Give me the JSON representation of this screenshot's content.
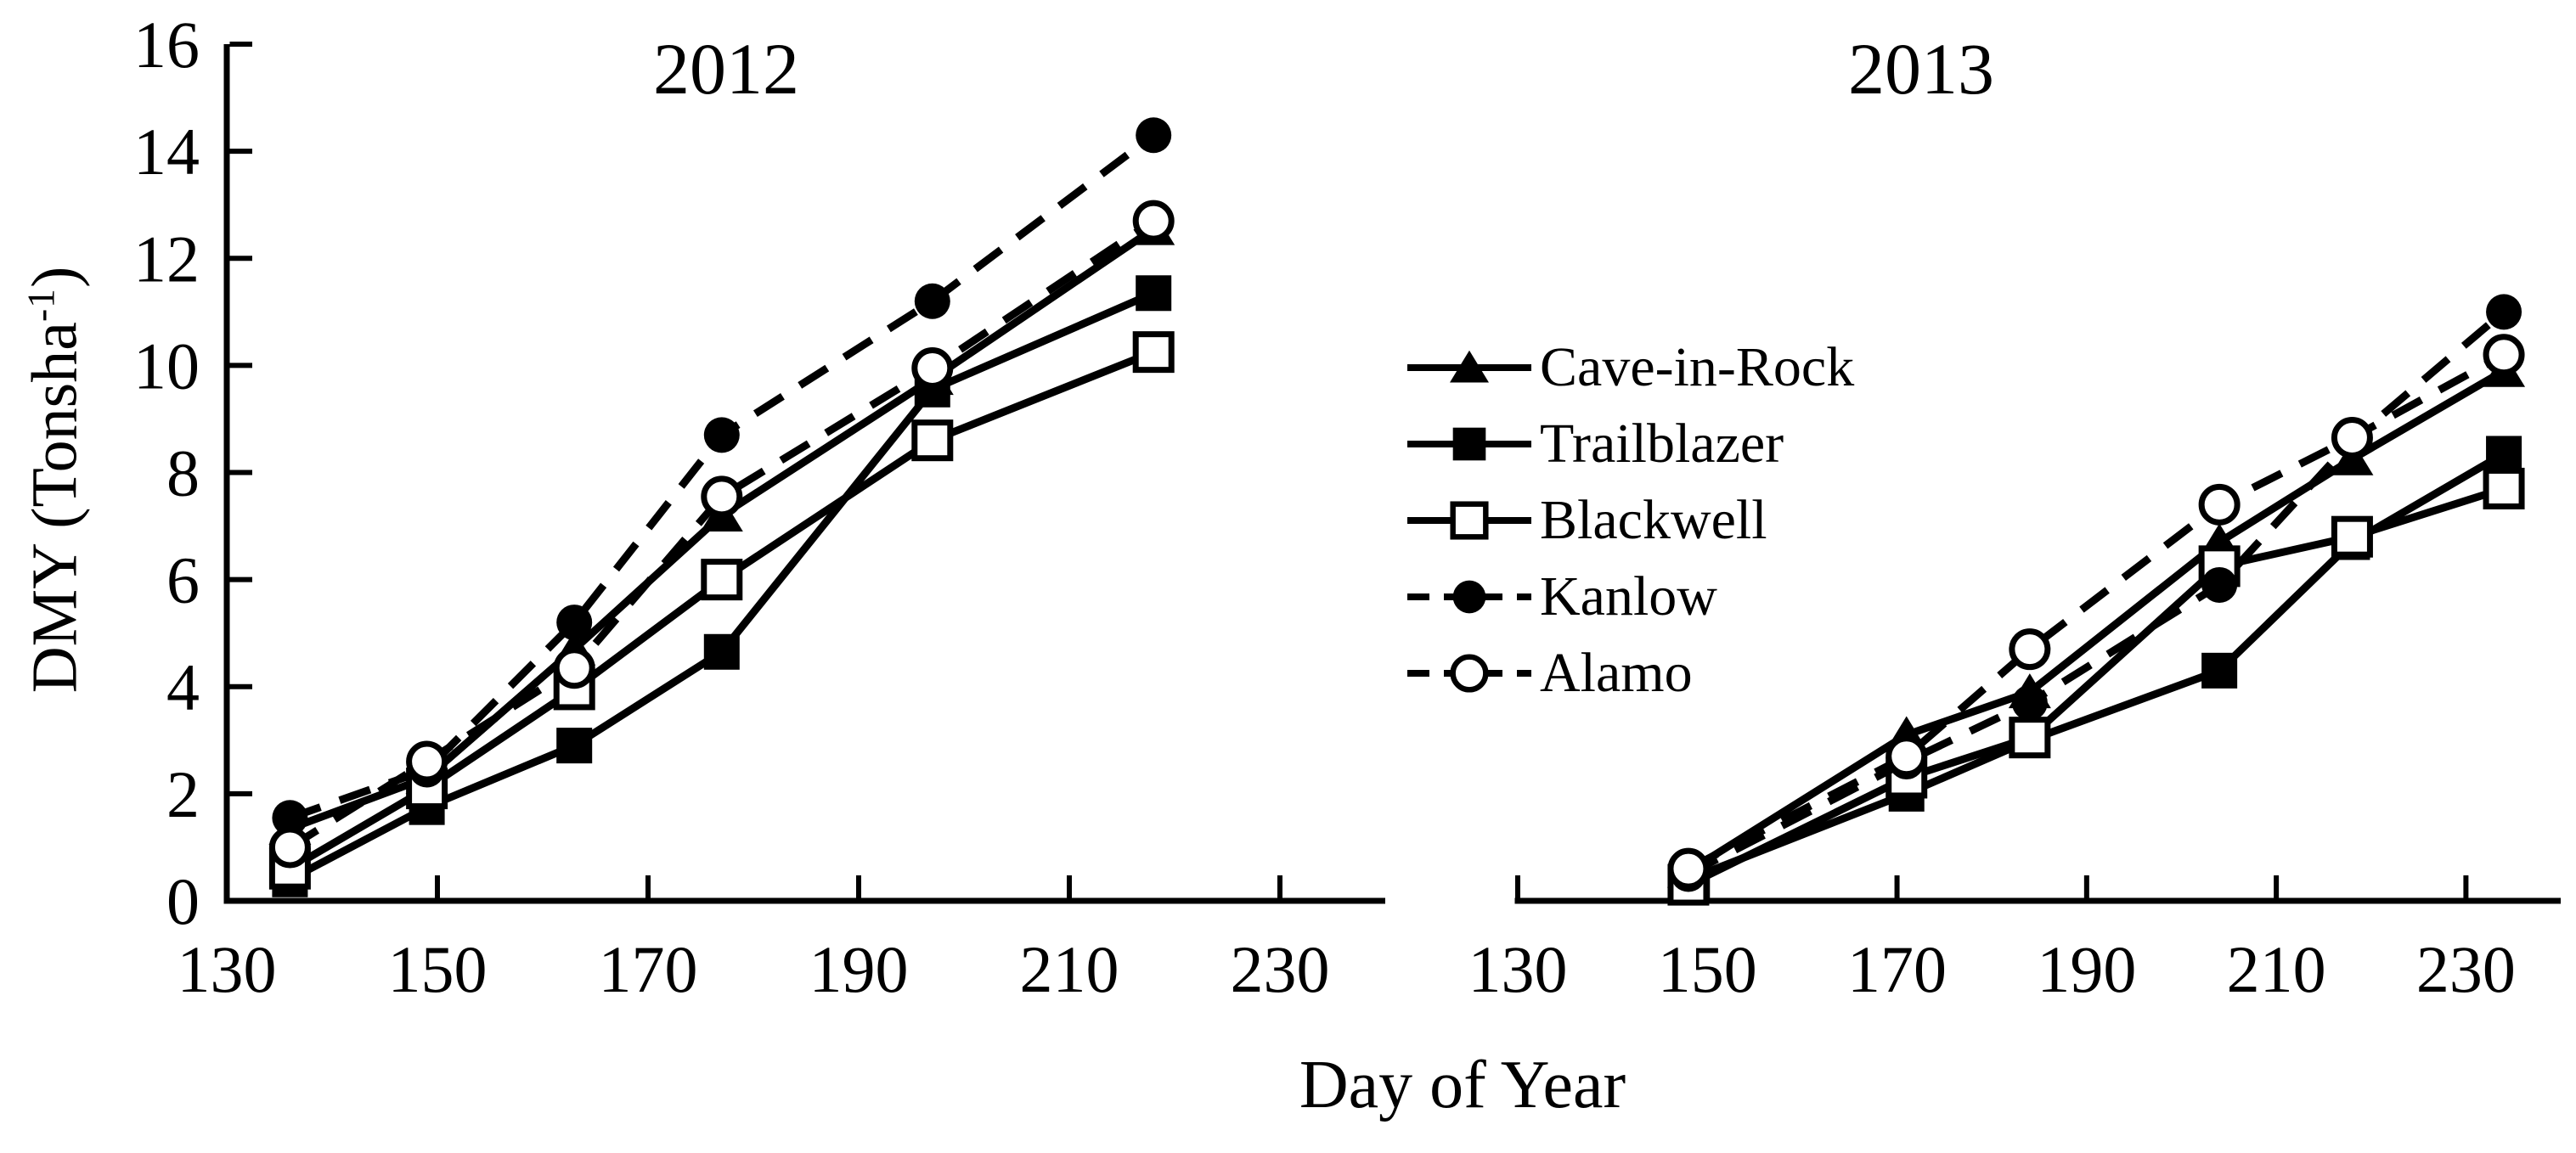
{
  "figure": {
    "background": "#ffffff",
    "ink_color": "#000000",
    "x_axis_label": "Day of Year",
    "y_axis_label_main": "DMY (Tonsha",
    "y_axis_label_sup": "-1",
    "y_axis_label_close": ")"
  },
  "legend": {
    "position": "center-left of 2013 panel",
    "items": [
      {
        "label": "Cave-in-Rock",
        "marker": "triangle-filled",
        "line": "solid"
      },
      {
        "label": "Trailblazer",
        "marker": "square-filled",
        "line": "solid"
      },
      {
        "label": "Blackwell",
        "marker": "square-open",
        "line": "solid"
      },
      {
        "label": "Kanlow",
        "marker": "circle-filled",
        "line": "dashed"
      },
      {
        "label": "Alamo",
        "marker": "circle-open",
        "line": "dashed"
      }
    ]
  },
  "chart_data": [
    {
      "type": "line",
      "title": "2012",
      "xlabel": "Day of Year",
      "ylabel": "DMY (Tonsha-1)",
      "xlim": [
        130,
        240
      ],
      "ylim": [
        0,
        16
      ],
      "x_ticks": [
        130,
        150,
        170,
        190,
        210,
        230
      ],
      "y_ticks": [
        0,
        2,
        4,
        6,
        8,
        10,
        12,
        14,
        16
      ],
      "grid": false,
      "show_y_axis": true,
      "x": [
        136,
        149,
        163,
        177,
        197,
        218
      ],
      "series": [
        {
          "name": "Cave-in-Rock",
          "marker": "triangle-filled",
          "line": "solid",
          "values": [
            1.35,
            2.3,
            4.7,
            7.2,
            9.75,
            12.55
          ]
        },
        {
          "name": "Trailblazer",
          "marker": "square-filled",
          "line": "solid",
          "values": [
            0.4,
            1.75,
            2.9,
            4.65,
            9.55,
            11.35
          ]
        },
        {
          "name": "Blackwell",
          "marker": "square-open",
          "line": "solid",
          "values": [
            0.6,
            2.1,
            3.95,
            6.0,
            8.6,
            10.25
          ]
        },
        {
          "name": "Kanlow",
          "marker": "circle-filled",
          "line": "dashed",
          "values": [
            1.55,
            2.45,
            5.2,
            8.7,
            11.2,
            14.3
          ]
        },
        {
          "name": "Alamo",
          "marker": "circle-open",
          "line": "dashed",
          "values": [
            1.0,
            2.6,
            4.35,
            7.55,
            9.95,
            12.7
          ]
        }
      ]
    },
    {
      "type": "line",
      "title": "2013",
      "xlabel": "Day of Year",
      "ylabel": "DMY (Tonsha-1)",
      "xlim": [
        130,
        240
      ],
      "ylim": [
        0,
        16
      ],
      "x_ticks": [
        130,
        150,
        170,
        190,
        210,
        230
      ],
      "y_ticks": [],
      "grid": false,
      "show_y_axis": false,
      "x": [
        148,
        171,
        184,
        204,
        218,
        234
      ],
      "series": [
        {
          "name": "Cave-in-Rock",
          "marker": "triangle-filled",
          "line": "solid",
          "values": [
            0.55,
            3.1,
            3.9,
            6.7,
            8.25,
            9.9
          ]
        },
        {
          "name": "Trailblazer",
          "marker": "square-filled",
          "line": "solid",
          "values": [
            0.4,
            2.0,
            3.0,
            4.3,
            6.7,
            8.35
          ]
        },
        {
          "name": "Blackwell",
          "marker": "square-open",
          "line": "solid",
          "values": [
            0.3,
            2.3,
            3.05,
            6.25,
            6.8,
            7.7
          ]
        },
        {
          "name": "Kanlow",
          "marker": "circle-filled",
          "line": "dashed",
          "values": [
            0.5,
            2.6,
            3.7,
            5.9,
            8.6,
            11.0
          ]
        },
        {
          "name": "Alamo",
          "marker": "circle-open",
          "line": "dashed",
          "values": [
            0.6,
            2.7,
            4.7,
            7.4,
            8.65,
            10.2
          ]
        }
      ]
    }
  ]
}
